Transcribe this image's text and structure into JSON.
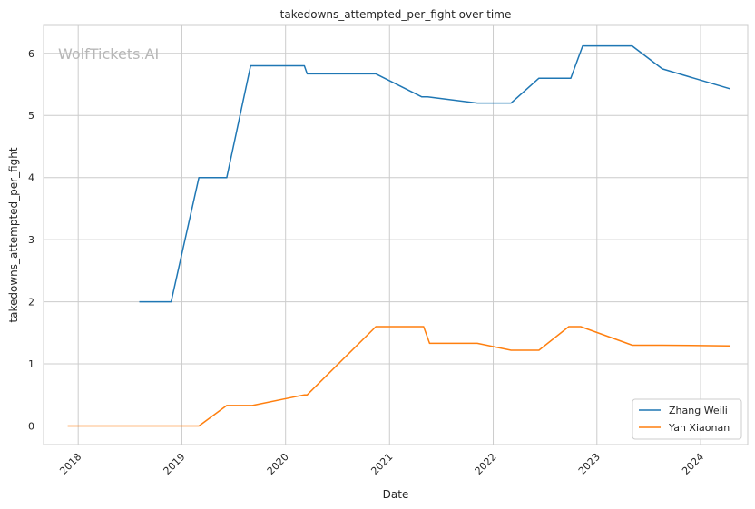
{
  "chart_data": {
    "type": "line",
    "title": "takedowns_attempted_per_fight over time",
    "xlabel": "Date",
    "ylabel": "takedowns_attempted_per_fight",
    "watermark": "WolfTickets.AI",
    "x_ticks": [
      "2018",
      "2019",
      "2020",
      "2021",
      "2022",
      "2023",
      "2024"
    ],
    "y_ticks": [
      0,
      1,
      2,
      3,
      4,
      5,
      6
    ],
    "xlim": [
      "2017-09-01",
      "2024-06-15"
    ],
    "ylim": [
      -0.3,
      6.45
    ],
    "grid": true,
    "legend_position": "bottom-right",
    "colors": {
      "Zhang Weili": "#1f77b4",
      "Yan Xiaonan": "#ff7f0e"
    },
    "series": [
      {
        "name": "Zhang Weili",
        "points": [
          [
            "2018-08-04",
            2.0
          ],
          [
            "2018-11-24",
            2.0
          ],
          [
            "2019-03-02",
            4.0
          ],
          [
            "2019-06-08",
            4.0
          ],
          [
            "2019-08-31",
            5.8
          ],
          [
            "2020-03-07",
            5.8
          ],
          [
            "2020-03-17",
            5.67
          ],
          [
            "2020-11-14",
            5.67
          ],
          [
            "2021-04-24",
            5.3
          ],
          [
            "2021-05-15",
            5.3
          ],
          [
            "2021-11-06",
            5.2
          ],
          [
            "2022-03-05",
            5.2
          ],
          [
            "2022-06-11",
            5.6
          ],
          [
            "2022-10-01",
            5.6
          ],
          [
            "2022-11-12",
            6.12
          ],
          [
            "2023-05-05",
            6.12
          ],
          [
            "2023-08-19",
            5.75
          ],
          [
            "2024-04-13",
            5.43
          ]
        ]
      },
      {
        "name": "Yan Xiaonan",
        "points": [
          [
            "2017-11-25",
            0.0
          ],
          [
            "2019-03-02",
            0.0
          ],
          [
            "2019-06-08",
            0.33
          ],
          [
            "2019-09-06",
            0.33
          ],
          [
            "2020-03-07",
            0.5
          ],
          [
            "2020-03-17",
            0.5
          ],
          [
            "2020-11-14",
            1.6
          ],
          [
            "2021-05-01",
            1.6
          ],
          [
            "2021-05-22",
            1.33
          ],
          [
            "2021-11-06",
            1.33
          ],
          [
            "2022-03-05",
            1.22
          ],
          [
            "2022-06-11",
            1.22
          ],
          [
            "2022-09-24",
            1.6
          ],
          [
            "2022-11-05",
            1.6
          ],
          [
            "2023-05-06",
            1.3
          ],
          [
            "2023-08-19",
            1.3
          ],
          [
            "2024-04-13",
            1.29
          ]
        ]
      }
    ]
  }
}
